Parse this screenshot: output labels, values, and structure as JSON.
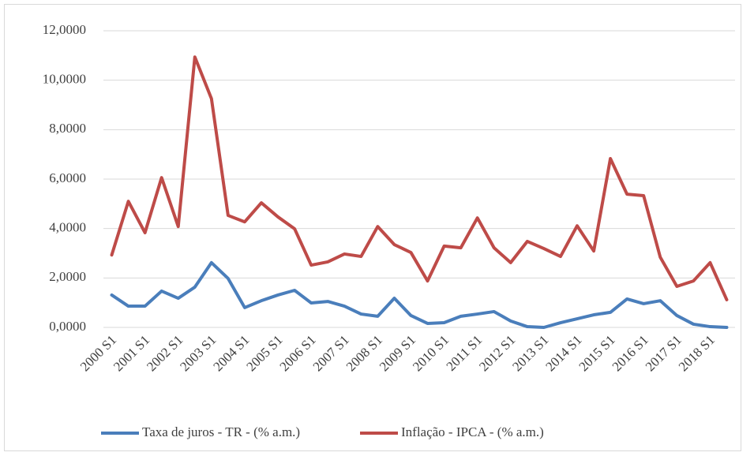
{
  "chart_data": {
    "type": "line",
    "categories": [
      "2000 S1",
      null,
      "2001 S1",
      null,
      "2002 S1",
      null,
      "2003 S1",
      null,
      "2004 S1",
      null,
      "2005 S1",
      null,
      "2006 S1",
      null,
      "2007 S1",
      null,
      "2008 S1",
      null,
      "2009 S1",
      null,
      "2010 S1",
      null,
      "2011 S1",
      null,
      "2012 S1",
      null,
      "2013 S1",
      null,
      "2014 S1",
      null,
      "2015 S1",
      null,
      "2016 S1",
      null,
      "2017 S1",
      null,
      "2018 S1",
      null
    ],
    "series": [
      {
        "name": "Taxa de juros - TR - (% a.m.)",
        "color": "#4a7ebb",
        "values": [
          1.31,
          0.86,
          0.86,
          1.47,
          1.18,
          1.63,
          2.62,
          1.98,
          0.8,
          1.08,
          1.31,
          1.5,
          0.99,
          1.05,
          0.86,
          0.54,
          0.45,
          1.18,
          0.48,
          0.16,
          0.19,
          0.45,
          0.54,
          0.64,
          0.26,
          0.03,
          0.0,
          0.19,
          0.35,
          0.51,
          0.61,
          1.15,
          0.96,
          1.08,
          0.48,
          0.13,
          0.03,
          0.0
        ]
      },
      {
        "name": "Inflação - IPCA - (% a.m.)",
        "color": "#be4b48",
        "values": [
          2.93,
          5.1,
          3.83,
          6.06,
          4.08,
          10.94,
          9.25,
          4.53,
          4.27,
          5.04,
          4.47,
          3.99,
          2.52,
          2.65,
          2.97,
          2.87,
          4.08,
          3.35,
          3.03,
          1.88,
          3.29,
          3.22,
          4.43,
          3.22,
          2.62,
          3.48,
          3.19,
          2.87,
          4.11,
          3.09,
          6.83,
          5.39,
          5.33,
          2.84,
          1.66,
          1.88,
          2.62,
          1.12
        ]
      }
    ],
    "ylim": [
      0,
      12
    ],
    "yticks": [
      {
        "value": 0,
        "label": "0,0000"
      },
      {
        "value": 2,
        "label": "2,0000"
      },
      {
        "value": 4,
        "label": "4,0000"
      },
      {
        "value": 6,
        "label": "6,0000"
      },
      {
        "value": 8,
        "label": "8,0000"
      },
      {
        "value": 10,
        "label": "10,0000"
      },
      {
        "value": 12,
        "label": "12,0000"
      }
    ],
    "grid": true,
    "legend": "bottom"
  }
}
